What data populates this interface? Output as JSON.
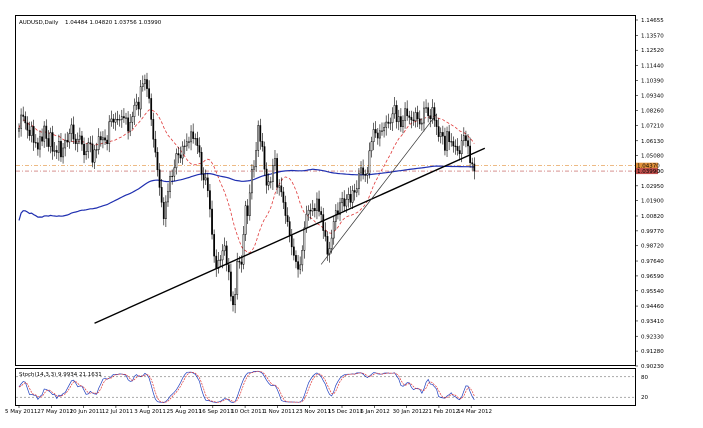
{
  "chart_data": {
    "type": "candlestick",
    "header": {
      "symbol_period": "AUDUSD,Daily",
      "ohlc": "1.04484 1.04820 1.03756 1.03990"
    },
    "price_axis": {
      "ticks": [
        1.14655,
        1.1357,
        1.1252,
        1.1144,
        1.1039,
        1.0934,
        1.0826,
        1.0721,
        1.0613,
        1.0508,
        1.04,
        1.0295,
        1.019,
        1.0082,
        0.9977,
        0.9872,
        0.9764,
        0.9659,
        0.9554,
        0.9446,
        0.9341,
        0.9233,
        0.9128,
        0.9023
      ],
      "tick_labels": [
        "1.14655",
        "1.13570",
        "1.12520",
        "1.11440",
        "1.10390",
        "1.09340",
        "1.08260",
        "1.07210",
        "1.06130",
        "1.05080",
        "1.04000",
        "1.02950",
        "1.01900",
        "1.00820",
        "0.99770",
        "0.98720",
        "0.97640",
        "0.96590",
        "0.95540",
        "0.94460",
        "0.93410",
        "0.92330",
        "0.91280",
        "0.90230"
      ],
      "range": [
        0.9023,
        1.14655
      ],
      "highlight_labels": [
        {
          "text": "1.04370",
          "color": "#e2913a"
        },
        {
          "text": "1.03990",
          "color": "#c0504d"
        }
      ]
    },
    "date_axis": {
      "labels": [
        "5 May 2011",
        "27 May 2011",
        "20 Jun 2011",
        "12 Jul 2011",
        "3 Aug 2011",
        "25 Aug 2011",
        "16 Sep 2011",
        "10 Oct 2011",
        "1 Nov 2011",
        "23 Nov 2011",
        "15 Dec 2011",
        "6 Jan 2012",
        "30 Jan 2012",
        "21 Feb 2012",
        "14 Mar 2012"
      ]
    },
    "bars": {
      "count": 225,
      "close": [
        1.0701,
        1.0795,
        1.0785,
        1.0739,
        1.0688,
        1.0649,
        1.0714,
        1.0601,
        1.0599,
        1.0554,
        1.0641,
        1.061,
        1.0717,
        1.0629,
        1.0572,
        1.0671,
        1.0538,
        1.0545,
        1.0531,
        1.0609,
        1.0499,
        1.0562,
        1.0617,
        1.0604,
        1.0664,
        1.0725,
        1.0625,
        1.0592,
        1.0624,
        1.0647,
        1.0589,
        1.0514,
        1.0536,
        1.0599,
        1.0591,
        1.0461,
        1.0549,
        1.0551,
        1.0643,
        1.0619,
        1.0634,
        1.0618,
        1.0592,
        1.0747,
        1.0767,
        1.0744,
        1.0765,
        1.076,
        1.0763,
        1.0784,
        1.0774,
        1.0775,
        1.0681,
        1.0743,
        1.0783,
        1.0864,
        1.0886,
        1.0837,
        1.0995,
        1.1015,
        1.1045,
        1.0981,
        1.0912,
        1.0764,
        1.0624,
        1.0532,
        1.0408,
        1.0284,
        1.0179,
        1.0063,
        1.0181,
        1.0254,
        1.0362,
        1.0363,
        1.0422,
        1.0523,
        1.0513,
        1.0491,
        1.0575,
        1.0576,
        1.0606,
        1.0605,
        1.0676,
        1.0628,
        1.063,
        1.0579,
        1.0532,
        1.0379,
        1.0336,
        1.0351,
        1.0261,
        1.0131,
        0.9952,
        0.9799,
        0.9711,
        0.9769,
        0.9772,
        0.9836,
        0.9871,
        0.9738,
        0.9687,
        0.9515,
        0.9455,
        0.9527,
        0.9763,
        0.9757,
        0.9741,
        0.9952,
        1.0154,
        1.0084,
        1.0245,
        1.0412,
        1.0429,
        1.0545,
        1.0721,
        1.0609,
        1.0572,
        1.0413,
        1.0299,
        1.0324,
        1.0324,
        1.0439,
        1.0489,
        1.0285,
        1.0295,
        1.0252,
        1.0178,
        1.0085,
        1.0042,
        0.9943,
        0.9864,
        0.9804,
        0.976,
        0.9706,
        0.9737,
        0.984,
        0.9998,
        1.0095,
        1.0123,
        1.0117,
        1.0136,
        1.0119,
        1.0202,
        1.0114,
        1.0092,
        0.9979,
        0.9938,
        0.9812,
        0.9852,
        0.9926,
        1.0043,
        1.0119,
        1.0093,
        1.0175,
        1.0205,
        1.0152,
        1.02,
        1.0235,
        1.0178,
        1.0262,
        1.025,
        1.0275,
        1.0385,
        1.0422,
        1.0375,
        1.0369,
        1.0382,
        1.0542,
        1.0606,
        1.0693,
        1.0668,
        1.0632,
        1.0683,
        1.0683,
        1.0708,
        1.0745,
        1.0736,
        1.0741,
        1.0803,
        1.0863,
        1.0747,
        1.0784,
        1.0712,
        1.0757,
        1.0839,
        1.0789,
        1.0778,
        1.076,
        1.0754,
        1.0813,
        1.0768,
        1.0731,
        1.0738,
        1.0844,
        1.0847,
        1.079,
        1.0768,
        1.0848,
        1.0758,
        1.0713,
        1.0642,
        1.0672,
        1.0646,
        1.0545,
        1.0678,
        1.0606,
        1.0608,
        1.0576,
        1.0573,
        1.0544,
        1.0521,
        1.0613,
        1.0649,
        1.0614,
        1.0576,
        1.0458,
        1.0449,
        1.0399
      ]
    },
    "indicators": {
      "ma_short_color": "#e03a3a",
      "ma_long_color": "#1f2fb0",
      "horizontal_levels": [
        1.0437,
        1.0399
      ],
      "trendlines": [
        {
          "from": [
            36,
            0.9325
          ],
          "to": [
            222,
            1.056
          ],
          "color": "#000000"
        },
        {
          "from": [
            144,
            0.974
          ],
          "to": [
            199,
            1.08
          ],
          "color": "#333333"
        }
      ]
    },
    "oscillator": {
      "label": "Stoch(14,3,3) 9.9934 21.1631",
      "levels": [
        80,
        20
      ],
      "level_labels": [
        "80",
        "20"
      ],
      "main_color": "#2040c0",
      "signal_color": "#e03a3a"
    }
  }
}
